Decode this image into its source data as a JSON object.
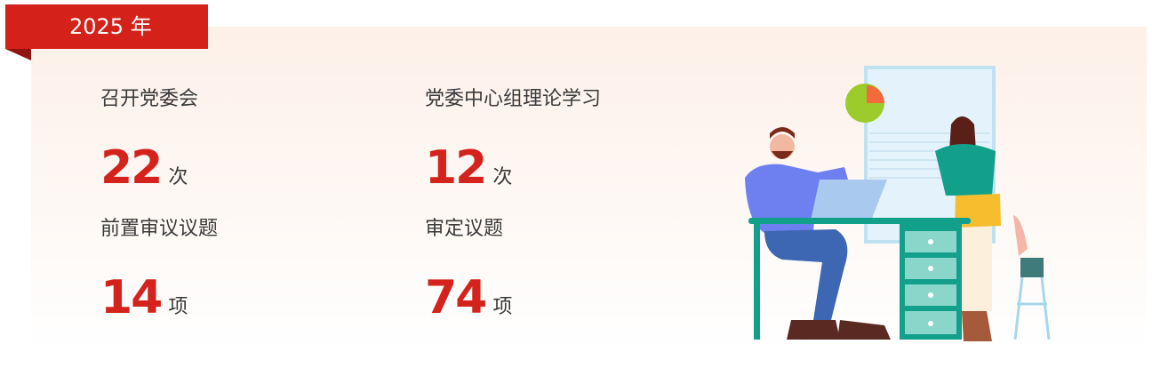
{
  "header": {
    "year_tag": "2025 年"
  },
  "stats": [
    {
      "label": "召开党委会",
      "value": 22,
      "unit": "次"
    },
    {
      "label": "党委中心组理论学习",
      "value": 12,
      "unit": "次"
    },
    {
      "label": "前置审议议题",
      "value": 14,
      "unit": "项"
    },
    {
      "label": "审定议题",
      "value": 74,
      "unit": "项"
    }
  ]
}
